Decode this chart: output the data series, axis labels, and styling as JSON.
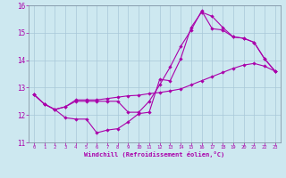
{
  "xlabel": "Windchill (Refroidissement éolien,°C)",
  "background_color": "#cde8f0",
  "grid_color": "#a8c8d8",
  "line_color": "#aa00aa",
  "xlim": [
    -0.5,
    23.5
  ],
  "ylim": [
    11,
    16
  ],
  "xticks": [
    0,
    1,
    2,
    3,
    4,
    5,
    6,
    7,
    8,
    9,
    10,
    11,
    12,
    13,
    14,
    15,
    16,
    17,
    18,
    19,
    20,
    21,
    22,
    23
  ],
  "yticks": [
    11,
    12,
    13,
    14,
    15,
    16
  ],
  "line1_x": [
    0,
    1,
    2,
    3,
    4,
    5,
    6,
    7,
    8,
    9,
    10,
    11,
    12,
    13,
    14,
    15,
    16,
    17,
    18,
    19,
    20,
    21,
    22,
    23
  ],
  "line1_y": [
    12.75,
    12.4,
    12.2,
    11.9,
    11.85,
    11.85,
    11.35,
    11.45,
    11.5,
    11.75,
    12.05,
    12.1,
    13.3,
    13.25,
    14.05,
    15.2,
    15.75,
    15.6,
    15.2,
    14.85,
    14.8,
    14.65,
    14.05,
    13.6
  ],
  "line2_x": [
    0,
    1,
    2,
    3,
    4,
    5,
    6,
    7,
    8,
    9,
    10,
    11,
    12,
    13,
    14,
    15,
    16,
    17,
    18,
    19,
    20,
    21,
    22,
    23
  ],
  "line2_y": [
    12.75,
    12.4,
    12.2,
    12.3,
    12.5,
    12.5,
    12.5,
    12.5,
    12.5,
    12.1,
    12.1,
    12.5,
    13.1,
    13.75,
    14.5,
    15.1,
    15.8,
    15.15,
    15.1,
    14.85,
    14.8,
    14.65,
    14.05,
    13.6
  ],
  "line3_x": [
    0,
    1,
    2,
    3,
    4,
    5,
    6,
    7,
    8,
    9,
    10,
    11,
    12,
    13,
    14,
    15,
    16,
    17,
    18,
    19,
    20,
    21,
    22,
    23
  ],
  "line3_y": [
    12.75,
    12.4,
    12.2,
    12.3,
    12.55,
    12.55,
    12.55,
    12.6,
    12.65,
    12.7,
    12.72,
    12.78,
    12.82,
    12.88,
    12.95,
    13.1,
    13.25,
    13.4,
    13.55,
    13.7,
    13.82,
    13.88,
    13.78,
    13.6
  ]
}
